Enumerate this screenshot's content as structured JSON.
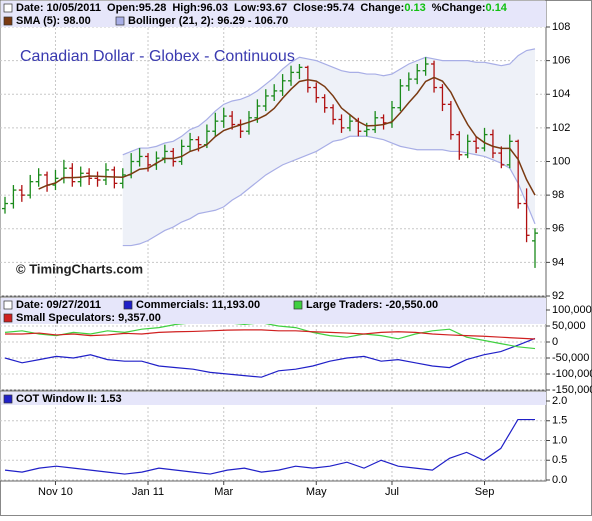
{
  "chart_data": [
    {
      "type": "ohlc",
      "title": "Canadian Dollar - Globex - Continuous",
      "watermark": "© TimingCharts.com",
      "info": [
        "Date: 10/05/2011",
        "Open:95.28",
        "High:96.03",
        "Low:93.67",
        "Close:95.74",
        "Change:",
        "0.13",
        "%Change:",
        "0.14"
      ],
      "up_color": "#1a8a1a",
      "down_color": "#b01010",
      "open": [
        97.2,
        97.5,
        98.3,
        98.0,
        98.8,
        99.2,
        98.6,
        99.0,
        99.6,
        98.8,
        99.3,
        99.0,
        98.9,
        99.5,
        98.7,
        99.2,
        100.0,
        100.3,
        99.8,
        100.2,
        100.6,
        100.0,
        100.9,
        101.3,
        101.0,
        101.8,
        102.4,
        102.7,
        102.2,
        101.8,
        102.6,
        103.3,
        103.9,
        104.2,
        104.8,
        105.3,
        105.6,
        104.4,
        103.8,
        103.2,
        102.5,
        102.0,
        102.4,
        101.8,
        101.9,
        102.6,
        102.3,
        103.2,
        104.5,
        104.9,
        105.4,
        105.8,
        104.4,
        103.4,
        101.6,
        100.4,
        101.2,
        100.8,
        101.6,
        100.5,
        99.8,
        101.2,
        97.5,
        95.28
      ],
      "high": [
        97.9,
        98.6,
        98.6,
        99.2,
        99.6,
        99.4,
        99.5,
        100.1,
        99.9,
        99.7,
        99.6,
        99.4,
        99.9,
        99.7,
        99.6,
        100.5,
        100.8,
        100.5,
        100.6,
        101.0,
        100.8,
        101.3,
        101.7,
        101.5,
        102.2,
        102.9,
        103.2,
        103.0,
        102.5,
        103.0,
        103.7,
        104.3,
        104.6,
        105.2,
        105.7,
        105.8,
        105.7,
        104.7,
        104.0,
        103.4,
        102.8,
        102.8,
        102.6,
        102.3,
        103.0,
        102.8,
        103.6,
        104.9,
        105.3,
        105.8,
        106.2,
        106.0,
        104.6,
        103.6,
        101.8,
        101.6,
        101.5,
        102.0,
        101.9,
        100.9,
        101.6,
        101.3,
        98.4,
        96.03
      ],
      "low": [
        96.9,
        97.2,
        97.6,
        97.8,
        98.5,
        98.2,
        98.3,
        98.7,
        98.5,
        98.5,
        98.6,
        98.5,
        98.6,
        98.4,
        98.4,
        99.0,
        99.7,
        99.4,
        99.5,
        99.9,
        99.7,
        99.8,
        100.6,
        100.6,
        100.8,
        101.5,
        102.0,
        101.9,
        101.4,
        101.6,
        102.3,
        103.0,
        103.6,
        103.9,
        104.5,
        104.9,
        104.1,
        103.5,
        102.9,
        102.2,
        101.7,
        101.8,
        101.5,
        101.5,
        101.7,
        101.9,
        102.0,
        103.0,
        104.2,
        104.6,
        105.1,
        104.1,
        103.0,
        101.3,
        100.1,
        100.2,
        100.5,
        100.6,
        100.2,
        99.6,
        99.6,
        97.2,
        95.2,
        93.67
      ],
      "close": [
        97.5,
        98.3,
        98.0,
        98.8,
        99.2,
        98.6,
        99.0,
        99.6,
        98.8,
        99.3,
        99.0,
        98.9,
        99.5,
        98.7,
        99.2,
        100.0,
        100.3,
        99.8,
        100.2,
        100.6,
        100.0,
        100.9,
        101.3,
        101.0,
        101.8,
        102.4,
        102.7,
        102.2,
        101.8,
        102.6,
        103.3,
        103.9,
        104.2,
        104.8,
        105.3,
        105.6,
        104.4,
        103.8,
        103.2,
        102.5,
        102.0,
        102.4,
        101.8,
        101.9,
        102.6,
        102.3,
        103.2,
        104.5,
        104.9,
        105.4,
        105.8,
        104.4,
        103.4,
        101.6,
        100.4,
        101.2,
        100.8,
        101.6,
        100.5,
        99.8,
        101.2,
        97.5,
        95.61,
        95.74
      ],
      "series": [
        {
          "name": "SMA (5): 98.00",
          "color": "#7a3a12",
          "values": [
            null,
            null,
            null,
            null,
            98.36,
            98.58,
            98.72,
            99.04,
            99.04,
            99.06,
            99.14,
            99.12,
            99.1,
            99.08,
            99.06,
            99.26,
            99.54,
            99.6,
            99.9,
            100.18,
            100.18,
            100.3,
            100.6,
            100.76,
            101.0,
            101.48,
            101.84,
            102.02,
            102.18,
            102.34,
            102.52,
            102.76,
            103.16,
            103.76,
            104.3,
            104.76,
            104.86,
            104.78,
            104.46,
            103.9,
            103.18,
            102.78,
            102.38,
            102.12,
            102.14,
            102.2,
            102.36,
            102.9,
            103.5,
            104.06,
            104.76,
            105.0,
            104.78,
            104.12,
            103.12,
            102.2,
            101.48,
            101.12,
            100.9,
            100.78,
            100.78,
            100.12,
            98.92,
            98.0
          ]
        },
        {
          "name": "Bollinger (21, 2): 96.29 - 106.70",
          "color": "#a8aee6",
          "fill": "#eef1f8",
          "upper": [
            null,
            null,
            null,
            null,
            null,
            null,
            null,
            null,
            null,
            null,
            null,
            null,
            null,
            null,
            100.4,
            100.6,
            100.8,
            100.8,
            100.9,
            101.1,
            101.2,
            101.5,
            101.9,
            102.1,
            102.5,
            103.0,
            103.4,
            103.6,
            103.7,
            103.9,
            104.2,
            104.6,
            105.0,
            105.5,
            105.9,
            106.2,
            106.1,
            106.0,
            105.8,
            105.6,
            105.4,
            105.3,
            105.3,
            105.2,
            105.2,
            105.1,
            105.2,
            105.5,
            105.8,
            106.0,
            106.2,
            106.1,
            106.0,
            106.0,
            106.0,
            106.0,
            105.9,
            105.9,
            105.8,
            105.7,
            105.8,
            106.3,
            106.6,
            106.7
          ],
          "lower": [
            null,
            null,
            null,
            null,
            null,
            null,
            null,
            null,
            null,
            null,
            null,
            null,
            null,
            null,
            95.0,
            95.0,
            95.1,
            95.3,
            95.6,
            95.9,
            96.1,
            96.4,
            96.6,
            96.9,
            97.0,
            97.1,
            97.3,
            97.7,
            98.0,
            98.4,
            98.8,
            99.2,
            99.5,
            99.8,
            100.0,
            100.2,
            100.4,
            100.6,
            100.9,
            101.2,
            101.3,
            101.5,
            101.5,
            101.5,
            101.4,
            101.3,
            101.1,
            100.9,
            100.8,
            100.7,
            100.7,
            100.7,
            100.7,
            100.6,
            100.6,
            100.5,
            100.4,
            100.3,
            100.1,
            99.9,
            99.6,
            98.7,
            97.5,
            96.29
          ]
        }
      ],
      "ylim": [
        92,
        108
      ],
      "yticks": [
        92,
        94,
        96,
        98,
        100,
        102,
        104,
        106,
        108
      ],
      "xticks": [
        {
          "value": 6,
          "label": "Nov 10"
        },
        {
          "value": 17,
          "label": "Jan 11"
        },
        {
          "value": 26,
          "label": "Mar"
        },
        {
          "value": 37,
          "label": "May"
        },
        {
          "value": 46,
          "label": "Jul"
        },
        {
          "value": 57,
          "label": "Sep"
        }
      ],
      "grid": true
    },
    {
      "type": "line",
      "info": [
        "Date: 09/27/2011"
      ],
      "series": [
        {
          "name": "Commercials: 11,193.00",
          "color": "#2020c8",
          "values": [
            -50000,
            -65000,
            -55000,
            -45000,
            -50000,
            -40000,
            -55000,
            -60000,
            -60000,
            -75000,
            -80000,
            -85000,
            -95000,
            -100000,
            -105000,
            -110000,
            -90000,
            -85000,
            -75000,
            -60000,
            -50000,
            -45000,
            -60000,
            -55000,
            -65000,
            -75000,
            -80000,
            -55000,
            -40000,
            -30000,
            -10000,
            11193
          ]
        },
        {
          "name": "Large Traders: -20,550.00",
          "color": "#40d040",
          "values": [
            30000,
            35000,
            25000,
            20000,
            30000,
            25000,
            35000,
            30000,
            40000,
            45000,
            55000,
            60000,
            65000,
            60000,
            55000,
            60000,
            50000,
            45000,
            30000,
            20000,
            15000,
            25000,
            20000,
            10000,
            25000,
            35000,
            40000,
            15000,
            5000,
            -5000,
            -15000,
            -20550
          ]
        },
        {
          "name": "Small Speculators: 9,357.00",
          "color": "#d02020",
          "values": [
            25000,
            25000,
            28000,
            22000,
            25000,
            20000,
            22000,
            27000,
            25000,
            30000,
            32000,
            33000,
            35000,
            37000,
            38000,
            38000,
            35000,
            35000,
            32000,
            30000,
            28000,
            25000,
            30000,
            32000,
            30000,
            25000,
            22000,
            20000,
            18000,
            15000,
            12000,
            9357
          ]
        }
      ],
      "ylim": [
        -150000,
        100000
      ],
      "yticks": [
        {
          "value": -150000,
          "label": "-150,000"
        },
        {
          "value": -100000,
          "label": "-100,000"
        },
        {
          "value": -50000,
          "label": "-50,000"
        },
        0,
        {
          "value": 50000,
          "label": "50,000"
        },
        {
          "value": 100000,
          "label": "100,000"
        }
      ],
      "grid": true
    },
    {
      "type": "line",
      "series": [
        {
          "name": "COT Window II: 1.53",
          "color": "#2020c8",
          "values": [
            0.25,
            0.2,
            0.3,
            0.35,
            0.3,
            0.25,
            0.2,
            0.15,
            0.2,
            0.3,
            0.25,
            0.2,
            0.15,
            0.25,
            0.3,
            0.2,
            0.25,
            0.35,
            0.3,
            0.35,
            0.45,
            0.3,
            0.5,
            0.35,
            0.3,
            0.25,
            0.55,
            0.7,
            0.5,
            0.8,
            1.53,
            1.53
          ]
        }
      ],
      "ylim": [
        0,
        2
      ],
      "yticks": [
        {
          "value": 0,
          "label": "0.0"
        },
        0.5,
        {
          "value": 1,
          "label": "1.0"
        },
        1.5,
        {
          "value": 2,
          "label": "2.0"
        }
      ],
      "grid": true
    }
  ]
}
